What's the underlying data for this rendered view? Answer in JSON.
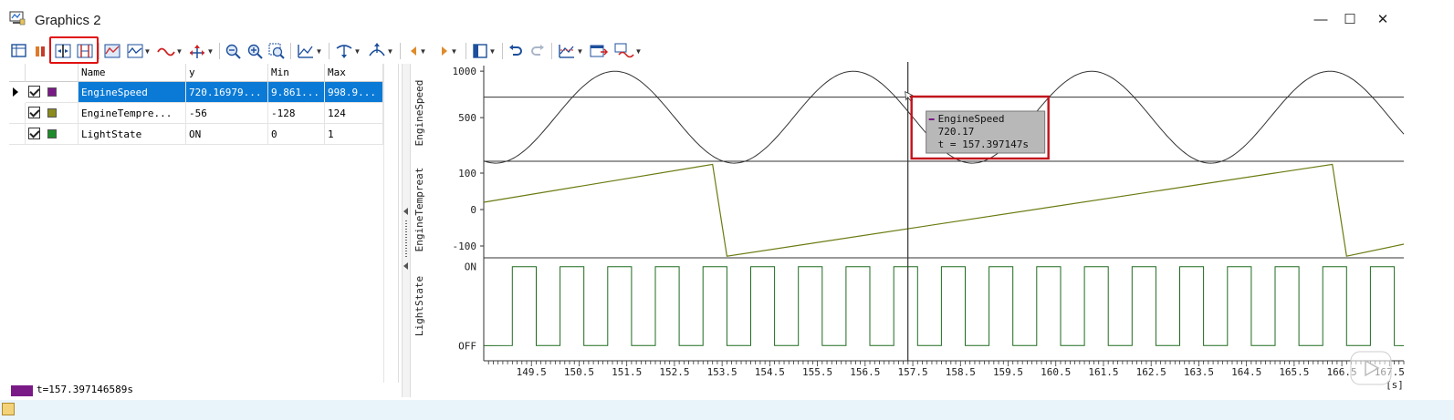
{
  "window": {
    "title": "Graphics 2",
    "controls": {
      "minimize": "—",
      "maximize": "☐",
      "close": "✕"
    }
  },
  "toolbar": {
    "highlight_color": "#e01010",
    "icons": [
      "select-columns-icon",
      "split-view-icon",
      "cursor-icon",
      "measure-cursors-icon",
      "fit-icon",
      "display-mode-icon",
      "line-style-icon",
      "axis-scale-icon",
      "zoom-out-icon",
      "zoom-in-icon",
      "zoom-region-icon",
      "chart-mode-icon",
      "marker-icon",
      "peak-icon",
      "previous-icon",
      "next-icon",
      "layout-icon",
      "undo-icon",
      "redo-icon",
      "signal-config-icon",
      "export-icon",
      "multi-signal-icon"
    ]
  },
  "grid": {
    "columns": [
      "Name",
      "y",
      "Min",
      "Max"
    ],
    "rows": [
      {
        "name": "EngineSpeed",
        "y": "720.16979...",
        "min": "9.861...",
        "max": "998.9...",
        "color": "#7a1a86",
        "checked": true,
        "selected": true
      },
      {
        "name": "EngineTempre...",
        "y": "-56",
        "min": "-128",
        "max": "124",
        "color": "#8b8b1e",
        "checked": true,
        "selected": false
      },
      {
        "name": "LightState",
        "y": "ON",
        "min": "0",
        "max": "1",
        "color": "#1e8b2a",
        "checked": true,
        "selected": false
      }
    ]
  },
  "status": {
    "text": "t=157.397146589s",
    "color": "#7a1a86"
  },
  "chart_data": [
    {
      "type": "line",
      "ylabel": "EngineSpeed",
      "yticks": [
        1000,
        500
      ],
      "ylim": [
        40,
        1060
      ],
      "series": [
        {
          "name": "EngineSpeed",
          "x": [
            148.5,
            167.8
          ],
          "values": "sinusoid",
          "min": 9.861,
          "max": 998.9,
          "period": 5.0,
          "color": "#333333"
        }
      ],
      "horizontal_reference": 720.17
    },
    {
      "type": "line",
      "ylabel": "EngineTempreat",
      "yticks": [
        100,
        0,
        -100
      ],
      "ylim": [
        -130,
        130
      ],
      "series": [
        {
          "name": "EngineTempre...",
          "color": "#6b7a10",
          "x": [
            148.5,
            153.3,
            153.6,
            166.3,
            166.6,
            167.8
          ],
          "values": [
            20,
            124,
            -128,
            124,
            -128,
            -95
          ]
        }
      ]
    },
    {
      "type": "line",
      "ylabel": "LightState",
      "yticks_text": [
        "ON",
        "OFF"
      ],
      "series": [
        {
          "name": "LightState",
          "color": "#1e6b1e",
          "period": 1.0,
          "on_duration": 0.5
        }
      ]
    }
  ],
  "x_axis": {
    "ticks": [
      "149.5",
      "150.5",
      "151.5",
      "152.5",
      "153.5",
      "154.5",
      "155.5",
      "156.5",
      "157.5",
      "158.5",
      "159.5",
      "160.5",
      "161.5",
      "162.5",
      "163.5",
      "164.5",
      "165.5",
      "166.5",
      "167.5"
    ],
    "unit": "[s]",
    "xlim": [
      148.5,
      167.8
    ]
  },
  "cursor": {
    "t": 157.397147,
    "tooltip": {
      "signal": "EngineSpeed",
      "value": "720.17",
      "time": "t = 157.397147s"
    }
  }
}
